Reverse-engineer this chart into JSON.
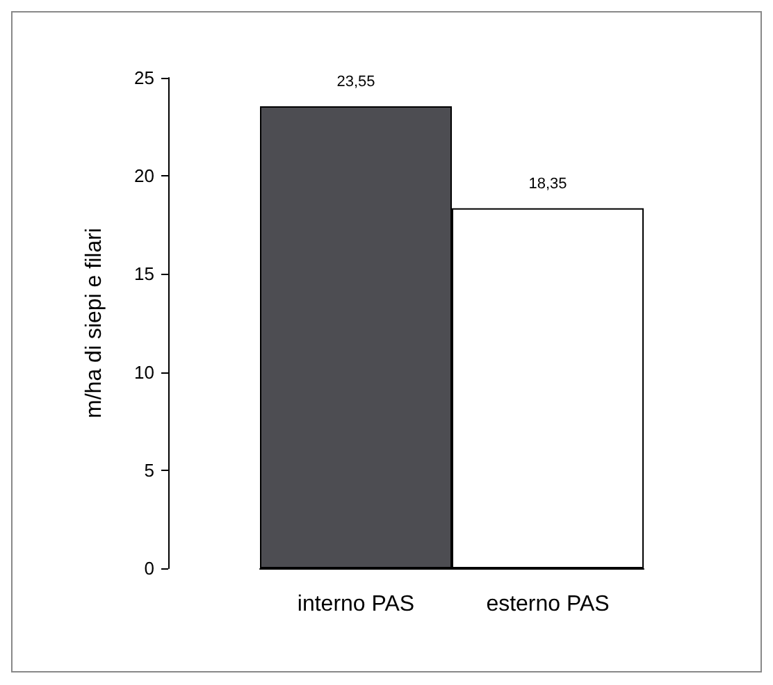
{
  "chart_data": {
    "type": "bar",
    "ylabel": "m/ha di siepi e filari",
    "categories": [
      "interno PAS",
      "esterno PAS"
    ],
    "values": [
      23.55,
      18.35
    ],
    "colors": [
      "#4d4d52",
      "#ffffff"
    ],
    "value_labels": [
      "23,55",
      "18,35"
    ],
    "ylim": [
      0,
      25
    ],
    "yticks": [
      0,
      5,
      10,
      15,
      20,
      25
    ],
    "grid": false
  }
}
